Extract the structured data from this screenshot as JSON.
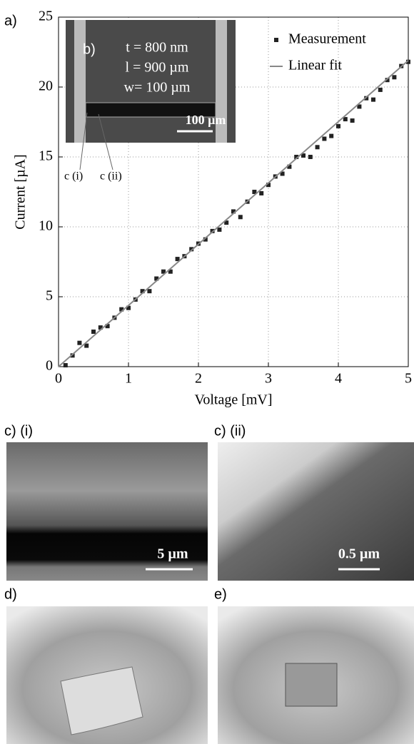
{
  "chart_data": {
    "type": "scatter",
    "panel_label": "a)",
    "xlabel": "Voltage [mV]",
    "ylabel": "Current [µA]",
    "xlim": [
      0,
      5
    ],
    "ylim": [
      0,
      25
    ],
    "xticks": [
      0,
      1,
      2,
      3,
      4,
      5
    ],
    "yticks": [
      0,
      5,
      10,
      15,
      20,
      25
    ],
    "grid": true,
    "legend": "upper right",
    "series": [
      {
        "name": "Measurement",
        "color": "#222222",
        "style": "markers",
        "x": [
          0.1,
          0.2,
          0.3,
          0.4,
          0.5,
          0.6,
          0.7,
          0.8,
          0.9,
          1.0,
          1.1,
          1.2,
          1.3,
          1.4,
          1.5,
          1.6,
          1.7,
          1.8,
          1.9,
          2.0,
          2.1,
          2.2,
          2.3,
          2.4,
          2.5,
          2.6,
          2.7,
          2.8,
          2.9,
          3.0,
          3.1,
          3.2,
          3.3,
          3.4,
          3.5,
          3.6,
          3.7,
          3.8,
          3.9,
          4.0,
          4.1,
          4.2,
          4.3,
          4.4,
          4.5,
          4.6,
          4.7,
          4.8,
          4.9,
          5.0
        ],
        "values": [
          0.1,
          0.8,
          1.7,
          1.5,
          2.5,
          2.8,
          2.9,
          3.5,
          4.1,
          4.2,
          4.8,
          5.4,
          5.4,
          6.3,
          6.8,
          6.8,
          7.7,
          7.9,
          8.4,
          8.8,
          9.1,
          9.7,
          9.8,
          10.3,
          11.1,
          10.7,
          11.8,
          12.5,
          12.4,
          13.0,
          13.6,
          13.8,
          14.3,
          15.0,
          15.1,
          15.0,
          15.7,
          16.3,
          16.5,
          17.2,
          17.7,
          17.6,
          18.6,
          19.2,
          19.1,
          19.8,
          20.5,
          20.7,
          21.5,
          21.8
        ]
      },
      {
        "name": "Linear fit",
        "color": "#888888",
        "style": "line",
        "x": [
          0,
          5
        ],
        "values": [
          0,
          21.9
        ]
      }
    ]
  },
  "inset": {
    "label": "b)",
    "lines": [
      "t = 800 nm",
      "l = 900 µm",
      "w= 100 µm"
    ],
    "scale": "100 µm",
    "callouts": [
      "c (i)",
      "c (ii)"
    ]
  },
  "panels": [
    {
      "label": "c) (i)",
      "scale": "5 µm"
    },
    {
      "label": "c) (ii)",
      "scale": "0.5 µm"
    },
    {
      "label": "d)"
    },
    {
      "label": "e)"
    }
  ]
}
